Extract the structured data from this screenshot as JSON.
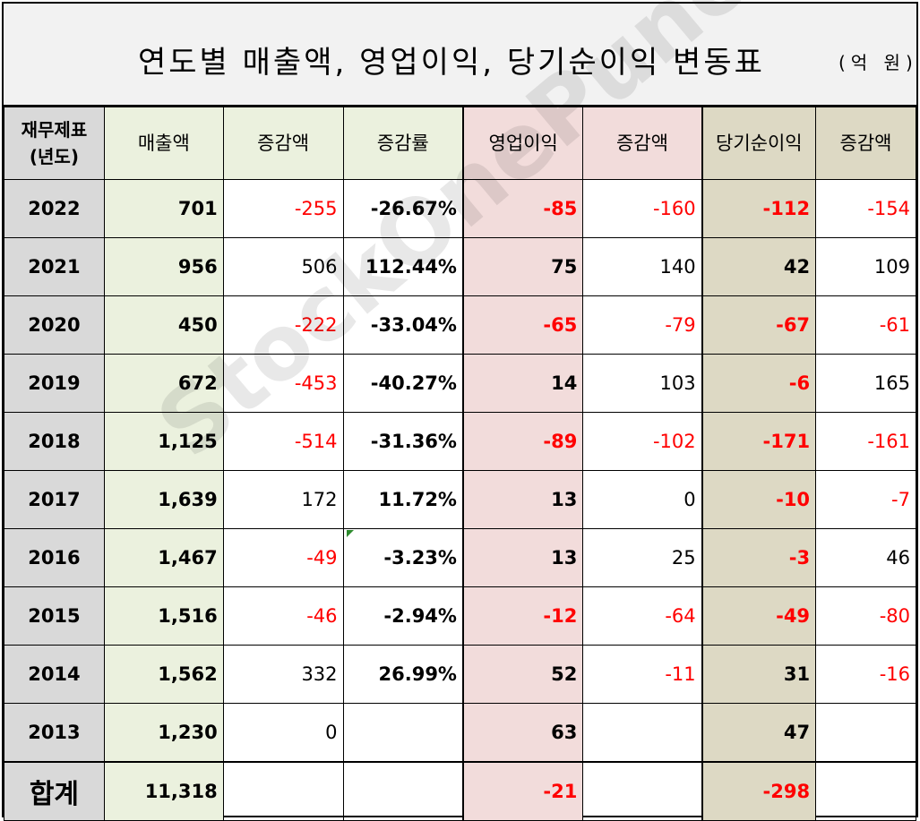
{
  "title": "연도별 매출액, 영업이익, 당기순이익 변동표",
  "unit": "(억 원)",
  "headers": {
    "year": "재무제표\n(년도)",
    "sales": "매출액",
    "sales_change": "증감액",
    "sales_rate": "증감률",
    "op": "영업이익",
    "op_change": "증감액",
    "ni": "당기순이익",
    "ni_change": "증감액"
  },
  "rows": [
    {
      "year": "2022",
      "sales": "701",
      "sales_change": "-255",
      "sales_rate": "-26.67%",
      "op": "-85",
      "op_change": "-160",
      "ni": "-112",
      "ni_change": "-154"
    },
    {
      "year": "2021",
      "sales": "956",
      "sales_change": "506",
      "sales_rate": "112.44%",
      "op": "75",
      "op_change": "140",
      "ni": "42",
      "ni_change": "109"
    },
    {
      "year": "2020",
      "sales": "450",
      "sales_change": "-222",
      "sales_rate": "-33.04%",
      "op": "-65",
      "op_change": "-79",
      "ni": "-67",
      "ni_change": "-61"
    },
    {
      "year": "2019",
      "sales": "672",
      "sales_change": "-453",
      "sales_rate": "-40.27%",
      "op": "14",
      "op_change": "103",
      "ni": "-6",
      "ni_change": "165"
    },
    {
      "year": "2018",
      "sales": "1,125",
      "sales_change": "-514",
      "sales_rate": "-31.36%",
      "op": "-89",
      "op_change": "-102",
      "ni": "-171",
      "ni_change": "-161"
    },
    {
      "year": "2017",
      "sales": "1,639",
      "sales_change": "172",
      "sales_rate": "11.72%",
      "op": "13",
      "op_change": "0",
      "ni": "-10",
      "ni_change": "-7"
    },
    {
      "year": "2016",
      "sales": "1,467",
      "sales_change": "-49",
      "sales_rate": "-3.23%",
      "op": "13",
      "op_change": "25",
      "ni": "-3",
      "ni_change": "46"
    },
    {
      "year": "2015",
      "sales": "1,516",
      "sales_change": "-46",
      "sales_rate": "-2.94%",
      "op": "-12",
      "op_change": "-64",
      "ni": "-49",
      "ni_change": "-80"
    },
    {
      "year": "2014",
      "sales": "1,562",
      "sales_change": "332",
      "sales_rate": "26.99%",
      "op": "52",
      "op_change": "-11",
      "ni": "31",
      "ni_change": "-16"
    },
    {
      "year": "2013",
      "sales": "1,230",
      "sales_change": "0",
      "sales_rate": "",
      "op": "63",
      "op_change": "",
      "ni": "47",
      "ni_change": ""
    }
  ],
  "total": {
    "label": "합계",
    "sales": "11,318",
    "op": "-21",
    "ni": "-298"
  },
  "watermark": "StockOnePunch",
  "colors": {
    "negative": "#ff0000",
    "sales_bg": "#ebf1de",
    "op_bg": "#f2dcdb",
    "ni_bg": "#ddd9c4",
    "year_bg": "#d9d9d9"
  }
}
